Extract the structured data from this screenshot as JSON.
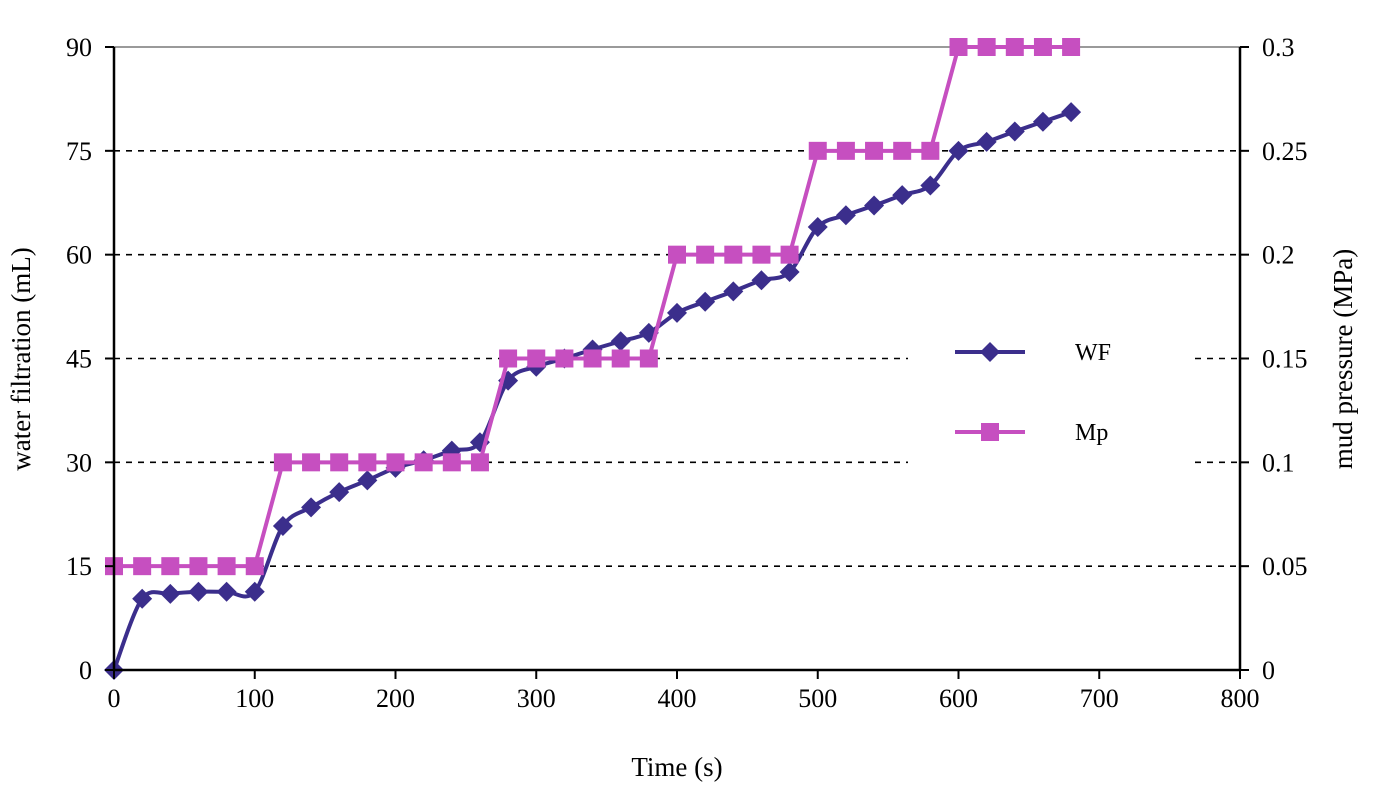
{
  "chart_data": {
    "type": "line",
    "title": "",
    "xlabel": "Time (s)",
    "ylabel": "water filtration (mL)",
    "y2label": "mud pressure (MPa)",
    "xlim": [
      0,
      800
    ],
    "ylim": [
      0,
      90
    ],
    "y2lim": [
      0,
      0.3
    ],
    "x_ticks": [
      0,
      100,
      200,
      300,
      400,
      500,
      600,
      700,
      800
    ],
    "y_ticks": [
      0,
      15,
      30,
      45,
      60,
      75,
      90
    ],
    "y2_ticks": [
      0,
      0.05,
      0.1,
      0.15,
      0.2,
      0.25,
      0.3
    ],
    "y_tick_labels": [
      "0",
      "15",
      "30",
      "45",
      "60",
      "75",
      "90"
    ],
    "y2_tick_labels": [
      "0",
      "0.05",
      "0.1",
      "0.15",
      "0.2",
      "0.25",
      "0.3"
    ],
    "grid": "horizontal dashed",
    "legend_position": "right",
    "series": [
      {
        "name": "WF",
        "axis": "left",
        "marker": "diamond",
        "color": "#3b2e8c",
        "x": [
          0,
          20,
          40,
          60,
          80,
          100,
          120,
          140,
          160,
          180,
          200,
          220,
          240,
          260,
          280,
          300,
          320,
          340,
          360,
          380,
          400,
          420,
          440,
          460,
          480,
          500,
          520,
          540,
          560,
          580,
          600,
          620,
          640,
          660,
          680
        ],
        "values": [
          0,
          10.3,
          11.0,
          11.3,
          11.3,
          11.3,
          20.8,
          23.5,
          25.7,
          27.4,
          29.2,
          30.3,
          31.7,
          32.9,
          41.8,
          43.8,
          45.0,
          46.3,
          47.5,
          48.7,
          51.6,
          53.2,
          54.7,
          56.3,
          57.5,
          64.0,
          65.7,
          67.1,
          68.6,
          70.0,
          75.0,
          76.3,
          77.8,
          79.2,
          80.6
        ]
      },
      {
        "name": "Mp",
        "axis": "right",
        "marker": "square",
        "color": "#c64fc0",
        "x": [
          0,
          20,
          40,
          60,
          80,
          100,
          120,
          140,
          160,
          180,
          200,
          220,
          240,
          260,
          280,
          300,
          320,
          340,
          360,
          380,
          400,
          420,
          440,
          460,
          480,
          500,
          520,
          540,
          560,
          580,
          600,
          620,
          640,
          660,
          680
        ],
        "values": [
          0.05,
          0.05,
          0.05,
          0.05,
          0.05,
          0.05,
          0.1,
          0.1,
          0.1,
          0.1,
          0.1,
          0.1,
          0.1,
          0.1,
          0.15,
          0.15,
          0.15,
          0.15,
          0.15,
          0.15,
          0.2,
          0.2,
          0.2,
          0.2,
          0.2,
          0.25,
          0.25,
          0.25,
          0.25,
          0.25,
          0.3,
          0.3,
          0.3,
          0.3,
          0.3
        ]
      }
    ]
  }
}
